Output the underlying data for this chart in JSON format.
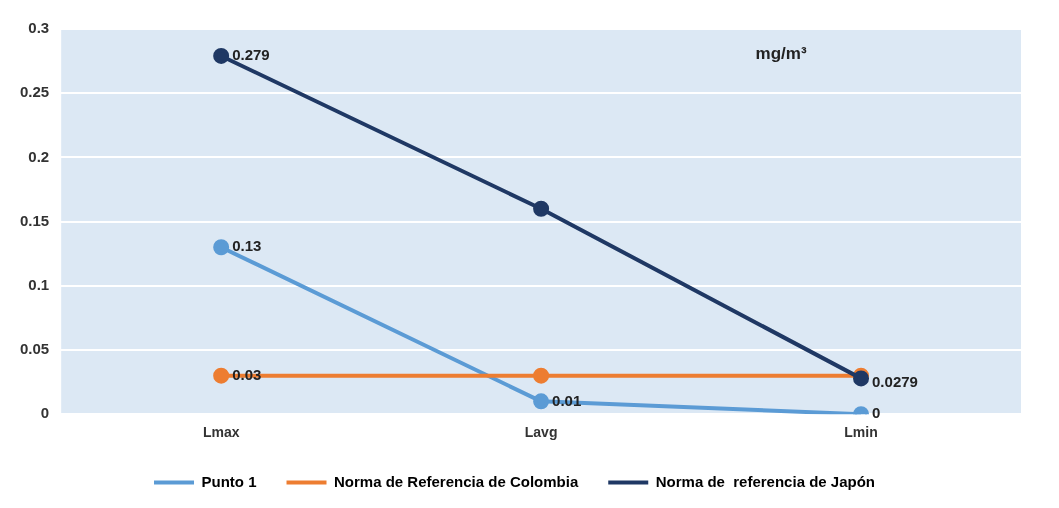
{
  "chart_data": {
    "type": "line",
    "categories": [
      "Lmax",
      "Lavg",
      "Lmin"
    ],
    "series": [
      {
        "name": "Punto 1",
        "color": "#5b9bd5",
        "values": [
          0.13,
          0.01,
          0
        ],
        "value_labels": [
          "0.13",
          "0.01",
          "0"
        ]
      },
      {
        "name": "Norma de Referencia de Colombia",
        "color": "#ed7d31",
        "values": [
          0.03,
          0.03,
          0.03
        ],
        "value_labels": [
          "0.03",
          null,
          null
        ]
      },
      {
        "name": "Norma de  referencia de Japón",
        "color": "#1f3864",
        "values": [
          0.279,
          0.16,
          0.0279
        ],
        "value_labels": [
          "0.279",
          null,
          "0.0279"
        ]
      }
    ],
    "ylim": [
      0,
      0.3
    ],
    "yticks": [
      0,
      0.05,
      0.1,
      0.15,
      0.2,
      0.25,
      0.3
    ],
    "grid": "y",
    "legend": "bottom",
    "marker": "circle",
    "line_style": "solid",
    "annotations": [
      "mg/m³"
    ]
  }
}
